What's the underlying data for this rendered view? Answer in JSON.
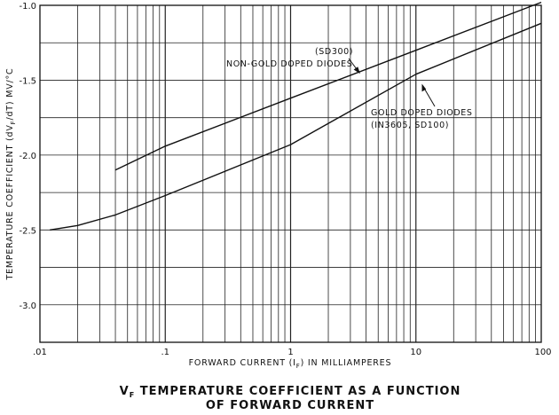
{
  "chart_data": {
    "type": "line",
    "title_line1": "V",
    "title_sub": "F",
    "title_line1_rest": " TEMPERATURE COEFFICIENT AS A FUNCTION",
    "title_line2": "OF FORWARD CURRENT",
    "xlabel_pre": "FORWARD CURRENT (I",
    "xlabel_sub": "F",
    "xlabel_post": ") IN MILLIAMPERES",
    "ylabel_pre": "TEMPERATURE  COEFFICIENT  (dV",
    "ylabel_sub": "F",
    "ylabel_post": "/dT) MV/°C",
    "x_scale": "log",
    "xlim": [
      0.01,
      100
    ],
    "ylim": [
      -3.25,
      -1.0
    ],
    "grid": true,
    "x_tick_labels": [
      ".01",
      ".1",
      "1",
      "10",
      "100"
    ],
    "x_tick_values": [
      0.01,
      0.1,
      1,
      10,
      100
    ],
    "y_tick_labels": [
      "-1.0",
      "-1.5",
      "-2.0",
      "-2.5",
      "-3.0"
    ],
    "y_tick_values": [
      -1.0,
      -1.5,
      -2.0,
      -2.5,
      -3.0
    ],
    "series": [
      {
        "name": "NON-GOLD DOPED DIODES",
        "note": "(SD300)",
        "x": [
          0.04,
          0.1,
          1,
          10,
          100
        ],
        "y": [
          -2.1,
          -1.94,
          -1.62,
          -1.3,
          -0.98
        ]
      },
      {
        "name": "GOLD DOPED DIODES",
        "note": "(IN3605, SD100)",
        "x": [
          0.012,
          0.02,
          0.04,
          0.1,
          1,
          10,
          100
        ],
        "y": [
          -2.5,
          -2.47,
          -2.4,
          -2.27,
          -1.93,
          -1.46,
          -1.12
        ]
      }
    ]
  }
}
